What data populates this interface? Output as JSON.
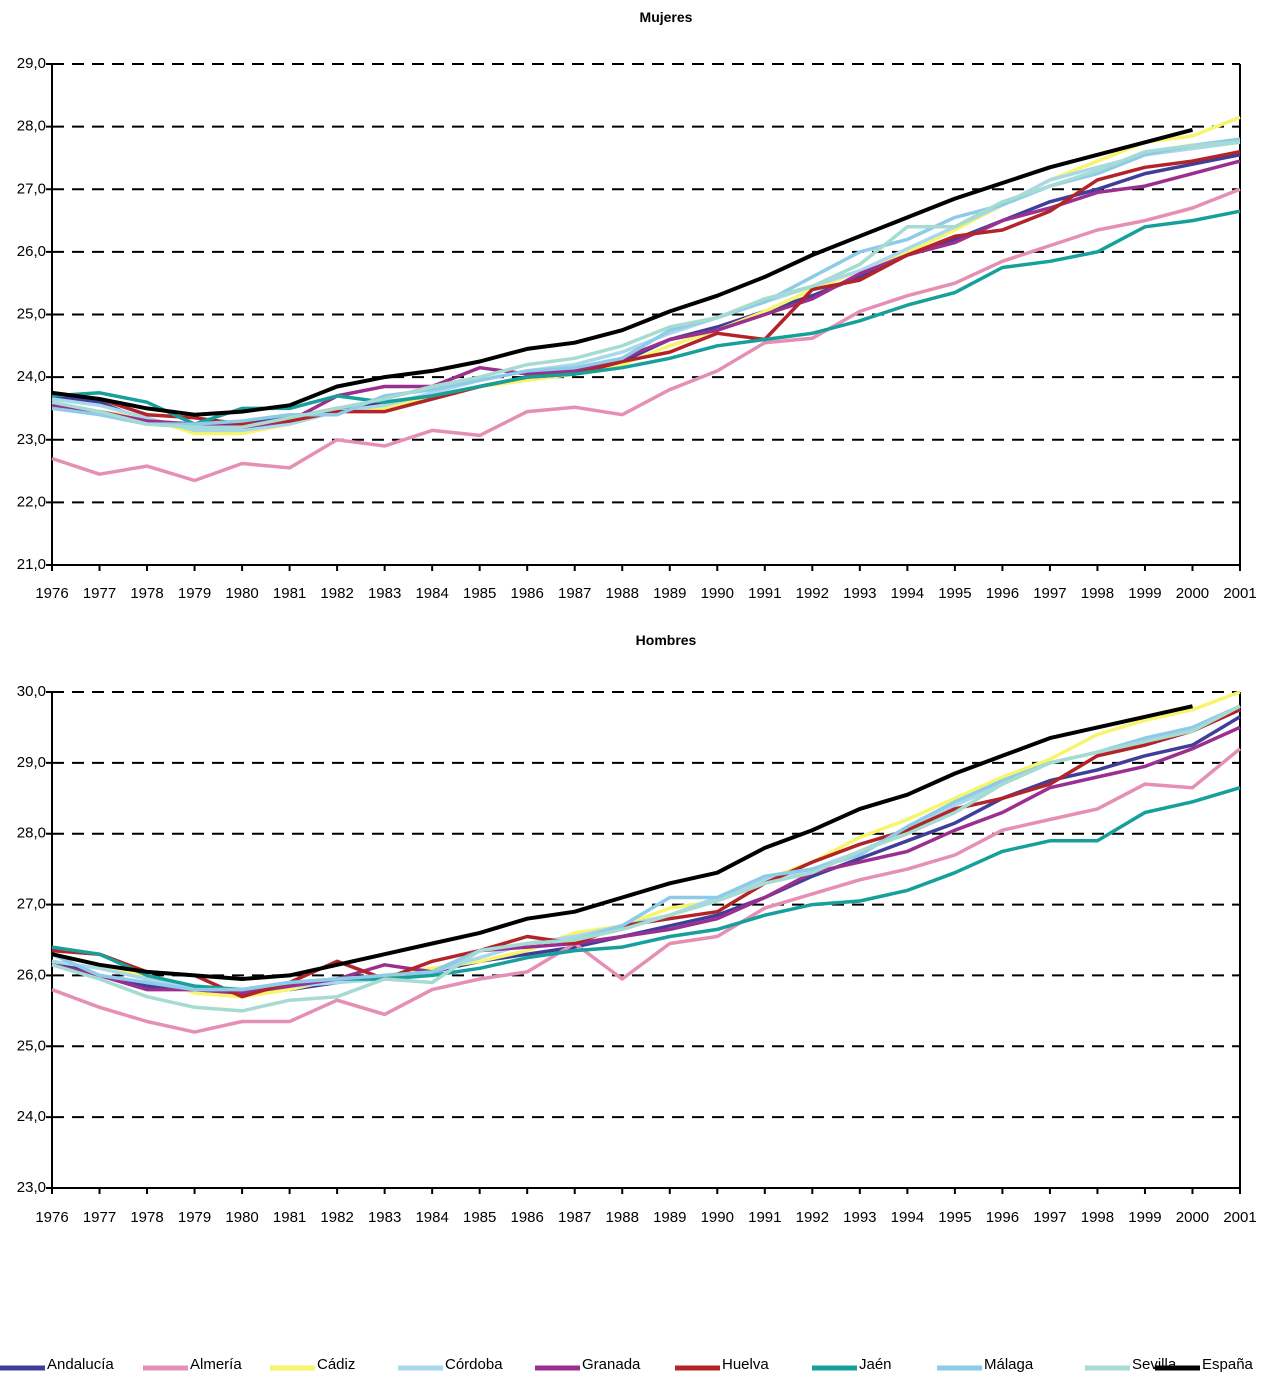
{
  "chart_data": [
    {
      "type": "line",
      "title": "Mujeres",
      "xlabel": "",
      "ylabel": "",
      "ylim": [
        21,
        29
      ],
      "y_ticks": [
        "21,0",
        "22,0",
        "23,0",
        "24,0",
        "25,0",
        "26,0",
        "27,0",
        "28,0",
        "29,0"
      ],
      "grid": "horizontal dashed",
      "x": [
        1976,
        1977,
        1978,
        1979,
        1980,
        1981,
        1982,
        1983,
        1984,
        1985,
        1986,
        1987,
        1988,
        1989,
        1990,
        1991,
        1992,
        1993,
        1994,
        1995,
        1996,
        1997,
        1998,
        1999,
        2000,
        2001
      ],
      "series": [
        {
          "name": "Andalucía",
          "color": "#3f3f9a",
          "values": [
            23.7,
            23.6,
            23.3,
            23.2,
            23.25,
            23.35,
            23.5,
            23.6,
            23.7,
            23.85,
            24.0,
            24.05,
            24.25,
            24.6,
            24.8,
            25.05,
            25.3,
            25.6,
            25.95,
            26.2,
            26.5,
            26.8,
            27.0,
            27.25,
            27.4,
            27.55
          ]
        },
        {
          "name": "Almería",
          "color": "#e58fb4",
          "values": [
            22.7,
            22.45,
            22.58,
            22.35,
            22.62,
            22.55,
            23.0,
            22.9,
            23.15,
            23.07,
            23.45,
            23.52,
            23.4,
            23.8,
            24.1,
            24.55,
            24.62,
            25.05,
            25.3,
            25.5,
            25.85,
            26.1,
            26.35,
            26.5,
            26.7,
            27.0
          ]
        },
        {
          "name": "Cádiz",
          "color": "#f7f56b",
          "values": [
            23.55,
            23.45,
            23.35,
            23.1,
            23.1,
            23.25,
            23.45,
            23.5,
            23.7,
            23.85,
            23.95,
            24.05,
            24.2,
            24.5,
            24.75,
            25.05,
            25.4,
            25.7,
            26.0,
            26.35,
            26.75,
            27.15,
            27.45,
            27.75,
            27.85,
            28.15
          ]
        },
        {
          "name": "Córdoba",
          "color": "#a9d8ec",
          "values": [
            23.65,
            23.55,
            23.35,
            23.15,
            23.15,
            23.25,
            23.45,
            23.55,
            23.75,
            23.95,
            24.1,
            24.2,
            24.4,
            24.7,
            24.95,
            25.2,
            25.45,
            25.7,
            26.05,
            26.4,
            26.75,
            27.15,
            27.35,
            27.55,
            27.65,
            27.75
          ]
        },
        {
          "name": "Granada",
          "color": "#9b2f8f",
          "values": [
            23.55,
            23.45,
            23.3,
            23.25,
            23.2,
            23.3,
            23.7,
            23.85,
            23.85,
            24.15,
            24.05,
            24.1,
            24.3,
            24.6,
            24.75,
            25.0,
            25.25,
            25.65,
            25.95,
            26.15,
            26.5,
            26.7,
            26.95,
            27.05,
            27.25,
            27.45
          ]
        },
        {
          "name": "Huelva",
          "color": "#b22427",
          "values": [
            23.75,
            23.65,
            23.4,
            23.35,
            23.25,
            23.3,
            23.45,
            23.45,
            23.65,
            23.85,
            24.0,
            24.05,
            24.25,
            24.4,
            24.7,
            24.6,
            25.4,
            25.55,
            25.95,
            26.25,
            26.35,
            26.65,
            27.15,
            27.35,
            27.45,
            27.6
          ]
        },
        {
          "name": "Jaén",
          "color": "#17a09b",
          "values": [
            23.7,
            23.75,
            23.6,
            23.25,
            23.5,
            23.5,
            23.7,
            23.6,
            23.7,
            23.85,
            24.0,
            24.05,
            24.15,
            24.3,
            24.5,
            24.6,
            24.7,
            24.9,
            25.15,
            25.35,
            25.75,
            25.85,
            26.0,
            26.4,
            26.5,
            26.65
          ]
        },
        {
          "name": "Málaga",
          "color": "#8ecbe8",
          "values": [
            23.5,
            23.4,
            23.25,
            23.25,
            23.3,
            23.4,
            23.4,
            23.7,
            23.8,
            23.95,
            24.1,
            24.15,
            24.3,
            24.75,
            24.95,
            25.2,
            25.6,
            26.0,
            26.2,
            26.55,
            26.75,
            27.05,
            27.25,
            27.55,
            27.7,
            27.8
          ]
        },
        {
          "name": "Sevilla",
          "color": "#a6dbd2",
          "values": [
            23.6,
            23.45,
            23.25,
            23.2,
            23.2,
            23.35,
            23.5,
            23.65,
            23.85,
            24.0,
            24.2,
            24.3,
            24.5,
            24.8,
            24.95,
            25.25,
            25.45,
            25.8,
            26.4,
            26.4,
            26.8,
            27.05,
            27.3,
            27.6,
            27.7,
            27.75
          ]
        },
        {
          "name": "España",
          "color": "#000000",
          "values": [
            23.75,
            23.65,
            23.5,
            23.4,
            23.45,
            23.55,
            23.85,
            24.0,
            24.1,
            24.25,
            24.45,
            24.55,
            24.75,
            25.05,
            25.3,
            25.6,
            25.95,
            26.25,
            26.55,
            26.85,
            27.1,
            27.35,
            27.55,
            27.75,
            27.95,
            null
          ]
        }
      ]
    },
    {
      "type": "line",
      "title": "Hombres",
      "xlabel": "",
      "ylabel": "",
      "ylim": [
        23,
        30
      ],
      "y_ticks": [
        "23,0",
        "24,0",
        "25,0",
        "26,0",
        "27,0",
        "28,0",
        "29,0",
        "30,0"
      ],
      "grid": "horizontal dashed",
      "x": [
        1976,
        1977,
        1978,
        1979,
        1980,
        1981,
        1982,
        1983,
        1984,
        1985,
        1986,
        1987,
        1988,
        1989,
        1990,
        1991,
        1992,
        1993,
        1994,
        1995,
        1996,
        1997,
        1998,
        1999,
        2000,
        2001
      ],
      "series": [
        {
          "name": "Andalucía",
          "color": "#3f3f9a",
          "values": [
            26.2,
            26.0,
            25.85,
            25.8,
            25.75,
            25.8,
            25.9,
            26.0,
            26.05,
            26.2,
            26.3,
            26.4,
            26.55,
            26.7,
            26.85,
            27.1,
            27.4,
            27.65,
            27.9,
            28.15,
            28.5,
            28.75,
            28.9,
            29.1,
            29.25,
            29.65
          ]
        },
        {
          "name": "Almería",
          "color": "#e58fb4",
          "values": [
            25.8,
            25.55,
            25.35,
            25.2,
            25.35,
            25.35,
            25.65,
            25.45,
            25.8,
            25.95,
            26.05,
            26.45,
            25.95,
            26.45,
            26.55,
            26.95,
            27.15,
            27.35,
            27.5,
            27.7,
            28.05,
            28.2,
            28.35,
            28.7,
            28.65,
            29.2
          ]
        },
        {
          "name": "Cádiz",
          "color": "#f7f56b",
          "values": [
            26.2,
            26.1,
            26.0,
            25.75,
            25.7,
            25.8,
            25.95,
            26.0,
            26.1,
            26.2,
            26.35,
            26.6,
            26.7,
            26.95,
            27.05,
            27.35,
            27.6,
            27.95,
            28.2,
            28.5,
            28.8,
            29.05,
            29.4,
            29.6,
            29.75,
            30.0
          ]
        },
        {
          "name": "Córdoba",
          "color": "#a9d8ec",
          "values": [
            26.2,
            26.1,
            25.95,
            25.85,
            25.8,
            25.85,
            25.9,
            25.95,
            26.05,
            26.25,
            26.45,
            26.55,
            26.7,
            26.85,
            27.1,
            27.35,
            27.5,
            27.75,
            28.05,
            28.4,
            28.7,
            29.0,
            29.15,
            29.3,
            29.45,
            29.75
          ]
        },
        {
          "name": "Granada",
          "color": "#9b2f8f",
          "values": [
            26.15,
            26.0,
            25.8,
            25.8,
            25.75,
            25.85,
            25.95,
            26.15,
            26.05,
            26.35,
            26.4,
            26.45,
            26.55,
            26.65,
            26.8,
            27.1,
            27.45,
            27.6,
            27.75,
            28.05,
            28.3,
            28.65,
            28.8,
            28.95,
            29.2,
            29.5
          ]
        },
        {
          "name": "Huelva",
          "color": "#b22427",
          "values": [
            26.35,
            26.3,
            26.05,
            26.0,
            25.7,
            25.9,
            26.2,
            25.95,
            26.2,
            26.35,
            26.55,
            26.45,
            26.7,
            26.8,
            26.9,
            27.3,
            27.6,
            27.85,
            28.05,
            28.35,
            28.5,
            28.7,
            29.1,
            29.25,
            29.45,
            29.75
          ]
        },
        {
          "name": "Jaén",
          "color": "#17a09b",
          "values": [
            26.4,
            26.3,
            26.0,
            25.85,
            25.8,
            25.9,
            25.95,
            25.95,
            26.0,
            26.1,
            26.25,
            26.35,
            26.4,
            26.55,
            26.65,
            26.85,
            27.0,
            27.05,
            27.2,
            27.45,
            27.75,
            27.9,
            27.9,
            28.3,
            28.45,
            28.65
          ]
        },
        {
          "name": "Málaga",
          "color": "#8ecbe8",
          "values": [
            26.3,
            26.0,
            25.9,
            25.8,
            25.8,
            25.9,
            25.95,
            26.0,
            26.05,
            26.35,
            26.45,
            26.5,
            26.7,
            27.1,
            27.1,
            27.4,
            27.5,
            27.7,
            28.1,
            28.45,
            28.75,
            29.0,
            29.15,
            29.35,
            29.5,
            29.8
          ]
        },
        {
          "name": "Sevilla",
          "color": "#a6dbd2",
          "values": [
            26.15,
            25.95,
            25.7,
            25.55,
            25.5,
            25.65,
            25.7,
            25.95,
            25.9,
            26.35,
            26.45,
            26.5,
            26.65,
            26.85,
            27.05,
            27.3,
            27.45,
            27.75,
            28.0,
            28.3,
            28.7,
            29.0,
            29.15,
            29.3,
            29.45,
            29.8
          ]
        },
        {
          "name": "España",
          "color": "#000000",
          "values": [
            26.3,
            26.15,
            26.05,
            26.0,
            25.95,
            26.0,
            26.15,
            26.3,
            26.45,
            26.6,
            26.8,
            26.9,
            27.1,
            27.3,
            27.45,
            27.8,
            28.05,
            28.35,
            28.55,
            28.85,
            29.1,
            29.35,
            29.5,
            29.65,
            29.8,
            null
          ]
        }
      ]
    }
  ]
}
